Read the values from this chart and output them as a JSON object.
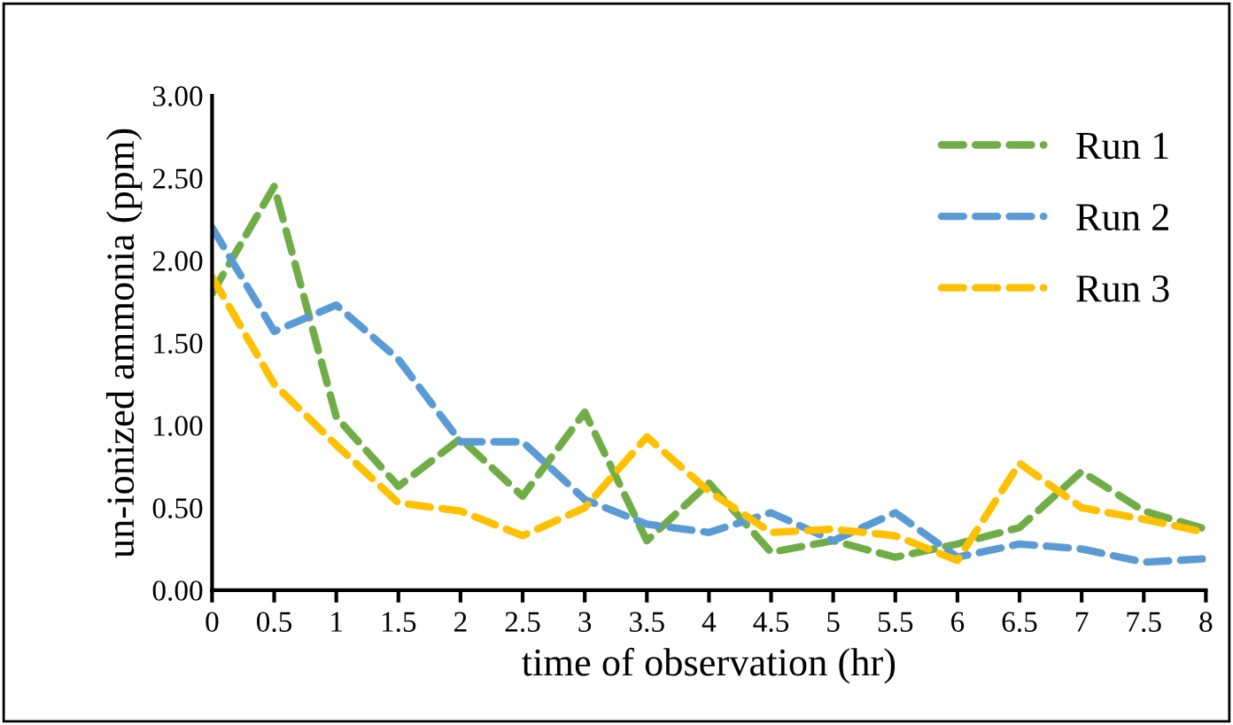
{
  "chart_data": {
    "type": "line",
    "xlabel": "time of observation (hr)",
    "ylabel": "un-ionized ammonia (ppm)",
    "x": [
      0,
      0.5,
      1,
      1.5,
      2,
      2.5,
      3,
      3.5,
      4,
      4.5,
      5,
      5.5,
      6,
      6.5,
      7,
      7.5,
      8
    ],
    "series": [
      {
        "name": "Run 1",
        "color": "#70ad47",
        "values": [
          1.8,
          2.45,
          1.05,
          0.63,
          0.92,
          0.57,
          1.08,
          0.3,
          0.65,
          0.23,
          0.3,
          0.2,
          0.28,
          0.38,
          0.72,
          0.48,
          0.37
        ]
      },
      {
        "name": "Run 2",
        "color": "#5b9bd5",
        "values": [
          2.2,
          1.57,
          1.73,
          1.4,
          0.9,
          0.9,
          0.55,
          0.4,
          0.35,
          0.47,
          0.3,
          0.47,
          0.2,
          0.28,
          0.25,
          0.17,
          0.19
        ]
      },
      {
        "name": "Run 3",
        "color": "#ffc000",
        "values": [
          1.9,
          1.25,
          0.88,
          0.53,
          0.48,
          0.33,
          0.5,
          0.93,
          0.6,
          0.35,
          0.37,
          0.33,
          0.18,
          0.77,
          0.5,
          0.43,
          0.35
        ]
      }
    ],
    "xlim": [
      0,
      8
    ],
    "xticks": [
      0,
      0.5,
      1,
      1.5,
      2,
      2.5,
      3,
      3.5,
      4,
      4.5,
      5,
      5.5,
      6,
      6.5,
      7,
      7.5,
      8
    ],
    "ylim": [
      0,
      3
    ],
    "yticks": [
      {
        "value": 0,
        "label": "0.00"
      },
      {
        "value": 0.5,
        "label": "0.50"
      },
      {
        "value": 1,
        "label": "1.00"
      },
      {
        "value": 1.5,
        "label": "1.50"
      },
      {
        "value": 2,
        "label": "2.00"
      },
      {
        "value": 2.5,
        "label": "2.50"
      },
      {
        "value": 3,
        "label": "3.00"
      }
    ],
    "grid": false,
    "legend": "top right",
    "line_style": "dashed",
    "marker": "none"
  }
}
